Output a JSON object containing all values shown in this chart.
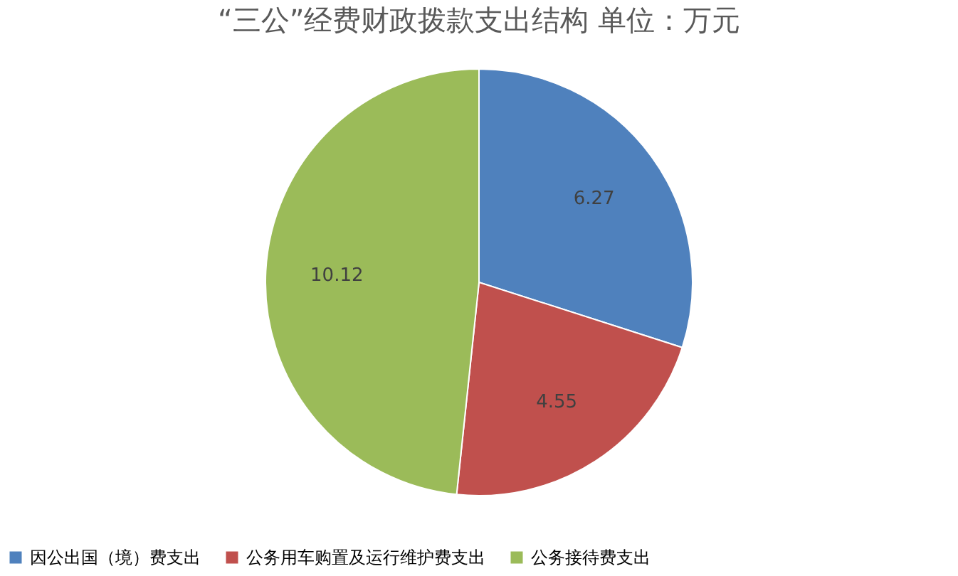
{
  "chart_data": {
    "type": "pie",
    "title": "“三公”经费财政拨款支出结构 单位：万元",
    "categories": [
      "因公出国（境）费支出",
      "公务用车购置及运行维护费支出",
      "公务接待费支出"
    ],
    "values": [
      6.27,
      4.55,
      10.12
    ],
    "colors": [
      "#4f81bd",
      "#c0504d",
      "#9bbb59"
    ],
    "data_labels": true,
    "legend": "bottom"
  }
}
